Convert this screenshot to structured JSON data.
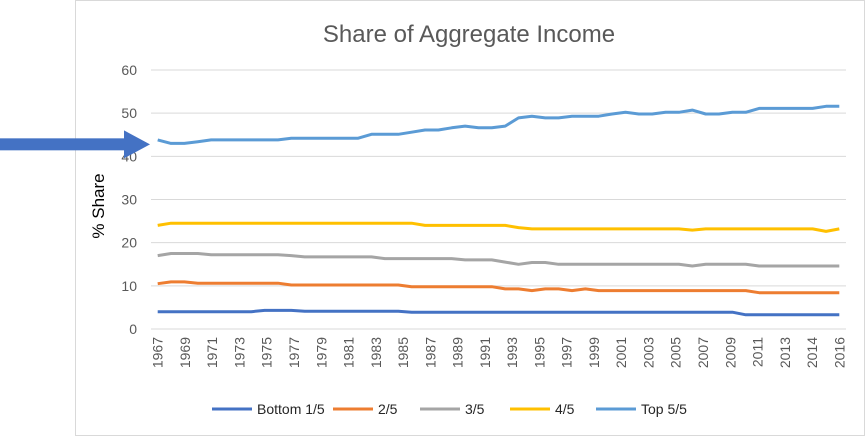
{
  "chart_data": {
    "type": "line",
    "title": "Share of Aggregate Income",
    "xlabel": "",
    "ylabel": "% Share",
    "ylim": [
      0,
      60
    ],
    "yticks": [
      0,
      10,
      20,
      30,
      40,
      50,
      60
    ],
    "grid": true,
    "legend_position": "bottom",
    "x": [
      "1967",
      "1968",
      "1969",
      "1970",
      "1971",
      "1972",
      "1973",
      "1974",
      "1975",
      "1976",
      "1977",
      "1978",
      "1979",
      "1980",
      "1981",
      "1982",
      "1983",
      "1984",
      "1985",
      "1986",
      "1987",
      "1988",
      "1989",
      "1990",
      "1991",
      "1992",
      "1993",
      "1994",
      "1995",
      "1996",
      "1997",
      "1998",
      "1999",
      "2000",
      "2001",
      "2002",
      "2003",
      "2004",
      "2005",
      "2006",
      "2007",
      "2008",
      "2009",
      "2010",
      "2011",
      "2012",
      "2013",
      "2013",
      "2014",
      "2015",
      "2016",
      "2017"
    ],
    "xtick_labels": [
      "1967",
      "1969",
      "1971",
      "1973",
      "1975",
      "1977",
      "1979",
      "1981",
      "1983",
      "1985",
      "1987",
      "1989",
      "1991",
      "1993",
      "1995",
      "1997",
      "1999",
      "2001",
      "2003",
      "2005",
      "2007",
      "2009",
      "2011",
      "2013",
      "2014",
      "2016"
    ],
    "series": [
      {
        "name": "Bottom 1/5",
        "color": "#4472c4",
        "values": [
          4,
          4,
          4,
          4,
          4,
          4,
          4,
          4,
          4.3,
          4.3,
          4.3,
          4.1,
          4.1,
          4.1,
          4.1,
          4.1,
          4.1,
          4.1,
          4.1,
          3.9,
          3.9,
          3.9,
          3.9,
          3.9,
          3.9,
          3.9,
          3.9,
          3.9,
          3.9,
          3.9,
          3.9,
          3.9,
          3.9,
          3.9,
          3.9,
          3.9,
          3.9,
          3.9,
          3.9,
          3.9,
          3.9,
          3.9,
          3.9,
          3.9,
          3.3,
          3.3,
          3.3,
          3.3,
          3.3,
          3.3,
          3.3,
          3.3
        ]
      },
      {
        "name": "2/5",
        "color": "#ed7d31",
        "values": [
          10.5,
          10.9,
          10.9,
          10.6,
          10.6,
          10.6,
          10.6,
          10.6,
          10.6,
          10.6,
          10.2,
          10.2,
          10.2,
          10.2,
          10.2,
          10.2,
          10.2,
          10.2,
          10.2,
          9.8,
          9.8,
          9.8,
          9.8,
          9.8,
          9.8,
          9.8,
          9.3,
          9.3,
          8.9,
          9.3,
          9.3,
          8.9,
          9.3,
          8.9,
          8.9,
          8.9,
          8.9,
          8.9,
          8.9,
          8.9,
          8.9,
          8.9,
          8.9,
          8.9,
          8.9,
          8.4,
          8.4,
          8.4,
          8.4,
          8.4,
          8.4,
          8.4
        ]
      },
      {
        "name": "3/5",
        "color": "#a5a5a5",
        "values": [
          17,
          17.5,
          17.5,
          17.5,
          17.2,
          17.2,
          17.2,
          17.2,
          17.2,
          17.2,
          17,
          16.7,
          16.7,
          16.7,
          16.7,
          16.7,
          16.7,
          16.3,
          16.3,
          16.3,
          16.3,
          16.3,
          16.3,
          16,
          16,
          16,
          15.5,
          15,
          15.4,
          15.4,
          15,
          15,
          15,
          15,
          15,
          15,
          15,
          15,
          15,
          15,
          14.6,
          15,
          15,
          15,
          15,
          14.6,
          14.6,
          14.6,
          14.6,
          14.6,
          14.6,
          14.6
        ]
      },
      {
        "name": "4/5",
        "color": "#ffc000",
        "values": [
          24,
          24.5,
          24.5,
          24.5,
          24.5,
          24.5,
          24.5,
          24.5,
          24.5,
          24.5,
          24.5,
          24.5,
          24.5,
          24.5,
          24.5,
          24.5,
          24.5,
          24.5,
          24.5,
          24.5,
          24,
          24,
          24,
          24,
          24,
          24,
          24,
          23.5,
          23.2,
          23.2,
          23.2,
          23.2,
          23.2,
          23.2,
          23.2,
          23.2,
          23.2,
          23.2,
          23.2,
          23.2,
          22.9,
          23.2,
          23.2,
          23.2,
          23.2,
          23.2,
          23.2,
          23.2,
          23.2,
          23.2,
          22.6,
          23.2
        ]
      },
      {
        "name": "Top 5/5",
        "color": "#5b9bd5",
        "values": [
          43.8,
          43,
          43,
          43.4,
          43.8,
          43.8,
          43.8,
          43.8,
          43.8,
          43.8,
          44.2,
          44.2,
          44.2,
          44.2,
          44.2,
          44.2,
          45.1,
          45.1,
          45.1,
          45.6,
          46.1,
          46.1,
          46.6,
          47,
          46.6,
          46.6,
          47,
          48.9,
          49.3,
          48.9,
          48.9,
          49.3,
          49.3,
          49.3,
          49.8,
          50.2,
          49.8,
          49.8,
          50.2,
          50.2,
          50.7,
          49.8,
          49.8,
          50.2,
          50.2,
          51.1,
          51.1,
          51.1,
          51.1,
          51.1,
          51.6,
          51.6
        ]
      }
    ],
    "arrow_color": "#4472c4",
    "arrow_points_to": 40
  }
}
